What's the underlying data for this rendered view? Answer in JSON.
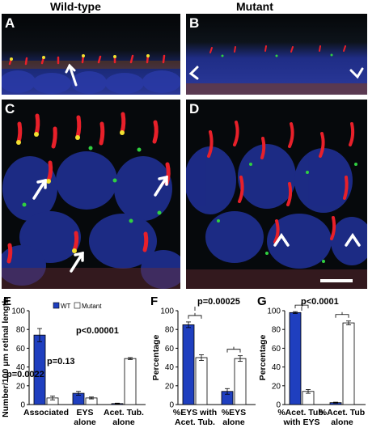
{
  "header": {
    "wild_type": "Wild-type",
    "mutant": "Mutant"
  },
  "panels": {
    "A": "A",
    "B": "B",
    "C": "C",
    "D": "D",
    "E": "E",
    "F": "F",
    "G": "G"
  },
  "colors": {
    "wt": "#1f3fbf",
    "mutant": "#ffffff",
    "nuclei": "#1e2f8e",
    "cilia_red": "#e8202a",
    "eys_green": "#30d040"
  },
  "chart_data": [
    {
      "id": "E",
      "type": "bar",
      "ylabel": "Number/100 μm retinal length",
      "ylim": [
        0,
        100
      ],
      "yticks": [
        0,
        20,
        40,
        60,
        80,
        100
      ],
      "categories": [
        "Associated",
        "EYS alone",
        "Acet. Tub. alone"
      ],
      "category_lines": [
        [
          "Associated"
        ],
        [
          "EYS",
          "alone"
        ],
        [
          "Acet. Tub.",
          "alone"
        ]
      ],
      "series": [
        {
          "name": "WT",
          "values": [
            74,
            12,
            1
          ],
          "errors": [
            7,
            2,
            0.5
          ]
        },
        {
          "name": "Mutant",
          "values": [
            7,
            7,
            49
          ],
          "errors": [
            2,
            1,
            1
          ]
        }
      ],
      "annotations": [
        "p=0.0022",
        "p=0.13",
        "p<0.00001"
      ],
      "legend": "top"
    },
    {
      "id": "F",
      "type": "bar",
      "ylabel": "Percentage",
      "ylim": [
        0,
        100
      ],
      "yticks": [
        0,
        20,
        40,
        60,
        80,
        100
      ],
      "categories": [
        "%EYS with Acet. Tub.",
        "%EYS alone"
      ],
      "category_lines": [
        [
          "%EYS with",
          "Acet. Tub."
        ],
        [
          "%EYS",
          "alone"
        ]
      ],
      "series": [
        {
          "name": "WT",
          "values": [
            85,
            14
          ],
          "errors": [
            3,
            3
          ]
        },
        {
          "name": "Mutant",
          "values": [
            50,
            49
          ],
          "errors": [
            3,
            3
          ]
        }
      ],
      "annotations": [
        "p=0.00025"
      ]
    },
    {
      "id": "G",
      "type": "bar",
      "ylabel": "Percentage",
      "ylim": [
        0,
        100
      ],
      "yticks": [
        0,
        20,
        40,
        60,
        80,
        100
      ],
      "categories": [
        "%Acet. Tub. with EYS",
        "%Acet. Tub alone"
      ],
      "category_lines": [
        [
          "%Acet. Tub.",
          "with EYS"
        ],
        [
          "%Acet. Tub",
          "alone"
        ]
      ],
      "series": [
        {
          "name": "WT",
          "values": [
            98,
            2
          ],
          "errors": [
            1,
            0.5
          ]
        },
        {
          "name": "Mutant",
          "values": [
            14,
            87
          ],
          "errors": [
            2,
            2
          ]
        }
      ],
      "annotations": [
        "p<0.0001"
      ]
    }
  ]
}
